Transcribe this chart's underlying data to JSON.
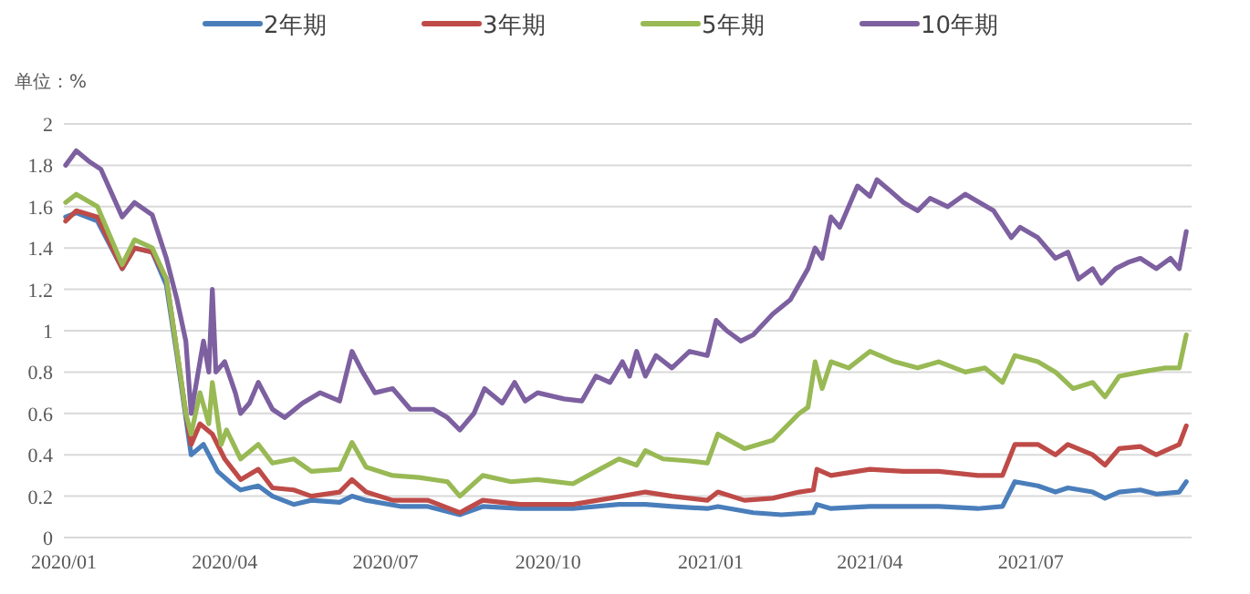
{
  "chart_data": {
    "type": "line",
    "ylabel": "单位：%",
    "legend": "top",
    "grid": "y",
    "xlim": [
      "2020-01-01",
      "2021-09-30"
    ],
    "ylim": [
      0,
      2
    ],
    "xticks": [
      {
        "value": "2020-01",
        "label": "2020/01"
      },
      {
        "value": "2020-04",
        "label": "2020/04"
      },
      {
        "value": "2020-07",
        "label": "2020/07"
      },
      {
        "value": "2020-10",
        "label": "2020/10"
      },
      {
        "value": "2021-01",
        "label": "2021/01"
      },
      {
        "value": "2021-04",
        "label": "2021/04"
      },
      {
        "value": "2021-07",
        "label": "2021/07"
      }
    ],
    "yticks": [
      0,
      0.2,
      0.4,
      0.6,
      0.8,
      1,
      1.2,
      1.4,
      1.6,
      1.8,
      2
    ],
    "series": [
      {
        "name": "2年期",
        "color": "#4a7ebb",
        "x": [
          "2020-01-02",
          "2020-01-08",
          "2020-01-20",
          "2020-02-03",
          "2020-02-10",
          "2020-02-20",
          "2020-02-28",
          "2020-03-05",
          "2020-03-10",
          "2020-03-13",
          "2020-03-20",
          "2020-03-28",
          "2020-04-05",
          "2020-04-10",
          "2020-04-20",
          "2020-04-28",
          "2020-05-10",
          "2020-05-20",
          "2020-06-05",
          "2020-06-12",
          "2020-06-20",
          "2020-07-10",
          "2020-07-25",
          "2020-08-12",
          "2020-08-25",
          "2020-09-15",
          "2020-10-15",
          "2020-11-10",
          "2020-11-25",
          "2020-12-10",
          "2020-12-30",
          "2021-01-05",
          "2021-01-25",
          "2021-02-10",
          "2021-02-28",
          "2021-03-02",
          "2021-03-10",
          "2021-04-01",
          "2021-04-20",
          "2021-05-10",
          "2021-06-01",
          "2021-06-15",
          "2021-06-22",
          "2021-07-05",
          "2021-07-15",
          "2021-07-22",
          "2021-08-05",
          "2021-08-12",
          "2021-08-20",
          "2021-09-01",
          "2021-09-10",
          "2021-09-23",
          "2021-09-27"
        ],
        "values": [
          1.55,
          1.57,
          1.53,
          1.3,
          1.4,
          1.38,
          1.22,
          0.88,
          0.58,
          0.4,
          0.45,
          0.32,
          0.26,
          0.23,
          0.25,
          0.2,
          0.16,
          0.18,
          0.17,
          0.2,
          0.18,
          0.15,
          0.15,
          0.11,
          0.15,
          0.14,
          0.14,
          0.16,
          0.16,
          0.15,
          0.14,
          0.15,
          0.12,
          0.11,
          0.12,
          0.16,
          0.14,
          0.15,
          0.15,
          0.15,
          0.14,
          0.15,
          0.27,
          0.25,
          0.22,
          0.24,
          0.22,
          0.19,
          0.22,
          0.23,
          0.21,
          0.22,
          0.27
        ]
      },
      {
        "name": "3年期",
        "color": "#be4b48",
        "x": [
          "2020-01-02",
          "2020-01-08",
          "2020-01-20",
          "2020-02-03",
          "2020-02-10",
          "2020-02-20",
          "2020-02-28",
          "2020-03-05",
          "2020-03-10",
          "2020-03-13",
          "2020-03-18",
          "2020-03-25",
          "2020-04-01",
          "2020-04-10",
          "2020-04-20",
          "2020-04-28",
          "2020-05-10",
          "2020-05-20",
          "2020-06-05",
          "2020-06-12",
          "2020-06-20",
          "2020-07-05",
          "2020-07-25",
          "2020-08-12",
          "2020-08-25",
          "2020-09-15",
          "2020-10-15",
          "2020-11-05",
          "2020-11-25",
          "2020-12-10",
          "2020-12-30",
          "2021-01-05",
          "2021-01-20",
          "2021-02-05",
          "2021-02-20",
          "2021-02-28",
          "2021-03-02",
          "2021-03-10",
          "2021-04-01",
          "2021-04-20",
          "2021-05-10",
          "2021-06-01",
          "2021-06-15",
          "2021-06-22",
          "2021-07-05",
          "2021-07-15",
          "2021-07-22",
          "2021-08-05",
          "2021-08-12",
          "2021-08-20",
          "2021-09-01",
          "2021-09-10",
          "2021-09-23",
          "2021-09-27"
        ],
        "values": [
          1.53,
          1.58,
          1.55,
          1.3,
          1.4,
          1.38,
          1.25,
          0.9,
          0.6,
          0.45,
          0.55,
          0.5,
          0.38,
          0.28,
          0.33,
          0.24,
          0.23,
          0.2,
          0.22,
          0.28,
          0.22,
          0.18,
          0.18,
          0.12,
          0.18,
          0.16,
          0.16,
          0.19,
          0.22,
          0.2,
          0.18,
          0.22,
          0.18,
          0.19,
          0.22,
          0.23,
          0.33,
          0.3,
          0.33,
          0.32,
          0.32,
          0.3,
          0.3,
          0.45,
          0.45,
          0.4,
          0.45,
          0.4,
          0.35,
          0.43,
          0.44,
          0.4,
          0.45,
          0.54
        ]
      },
      {
        "name": "5年期",
        "color": "#98b954",
        "x": [
          "2020-01-02",
          "2020-01-08",
          "2020-01-20",
          "2020-02-03",
          "2020-02-10",
          "2020-02-20",
          "2020-02-28",
          "2020-03-05",
          "2020-03-10",
          "2020-03-13",
          "2020-03-18",
          "2020-03-23",
          "2020-03-25",
          "2020-03-30",
          "2020-04-02",
          "2020-04-10",
          "2020-04-20",
          "2020-04-28",
          "2020-05-10",
          "2020-05-20",
          "2020-06-05",
          "2020-06-12",
          "2020-06-20",
          "2020-07-05",
          "2020-07-20",
          "2020-08-05",
          "2020-08-12",
          "2020-08-25",
          "2020-09-10",
          "2020-09-25",
          "2020-10-15",
          "2020-10-28",
          "2020-11-10",
          "2020-11-20",
          "2020-11-25",
          "2020-12-05",
          "2020-12-20",
          "2020-12-30",
          "2021-01-05",
          "2021-01-20",
          "2021-02-05",
          "2021-02-20",
          "2021-02-25",
          "2021-03-01",
          "2021-03-05",
          "2021-03-10",
          "2021-03-20",
          "2021-04-01",
          "2021-04-15",
          "2021-04-28",
          "2021-05-10",
          "2021-05-25",
          "2021-06-05",
          "2021-06-15",
          "2021-06-22",
          "2021-07-05",
          "2021-07-15",
          "2021-07-25",
          "2021-08-05",
          "2021-08-12",
          "2021-08-20",
          "2021-09-01",
          "2021-09-15",
          "2021-09-23",
          "2021-09-27"
        ],
        "values": [
          1.62,
          1.66,
          1.6,
          1.32,
          1.44,
          1.4,
          1.25,
          0.9,
          0.6,
          0.5,
          0.7,
          0.55,
          0.75,
          0.45,
          0.52,
          0.38,
          0.45,
          0.36,
          0.38,
          0.32,
          0.33,
          0.46,
          0.34,
          0.3,
          0.29,
          0.27,
          0.2,
          0.3,
          0.27,
          0.28,
          0.26,
          0.32,
          0.38,
          0.35,
          0.42,
          0.38,
          0.37,
          0.36,
          0.5,
          0.43,
          0.47,
          0.6,
          0.63,
          0.85,
          0.72,
          0.85,
          0.82,
          0.9,
          0.85,
          0.82,
          0.85,
          0.8,
          0.82,
          0.75,
          0.88,
          0.85,
          0.8,
          0.72,
          0.75,
          0.68,
          0.78,
          0.8,
          0.82,
          0.82,
          0.98
        ]
      },
      {
        "name": "10年期",
        "color": "#7d60a0",
        "x": [
          "2020-01-02",
          "2020-01-08",
          "2020-01-15",
          "2020-01-22",
          "2020-02-03",
          "2020-02-10",
          "2020-02-20",
          "2020-02-28",
          "2020-03-05",
          "2020-03-10",
          "2020-03-13",
          "2020-03-18",
          "2020-03-20",
          "2020-03-23",
          "2020-03-25",
          "2020-03-27",
          "2020-04-01",
          "2020-04-07",
          "2020-04-10",
          "2020-04-15",
          "2020-04-20",
          "2020-04-28",
          "2020-05-05",
          "2020-05-15",
          "2020-05-25",
          "2020-06-05",
          "2020-06-12",
          "2020-06-18",
          "2020-06-25",
          "2020-07-05",
          "2020-07-15",
          "2020-07-28",
          "2020-08-05",
          "2020-08-12",
          "2020-08-20",
          "2020-08-26",
          "2020-09-05",
          "2020-09-12",
          "2020-09-18",
          "2020-09-25",
          "2020-10-10",
          "2020-10-20",
          "2020-10-28",
          "2020-11-05",
          "2020-11-12",
          "2020-11-16",
          "2020-11-20",
          "2020-11-25",
          "2020-12-01",
          "2020-12-10",
          "2020-12-20",
          "2020-12-30",
          "2021-01-04",
          "2021-01-10",
          "2021-01-18",
          "2021-01-25",
          "2021-02-05",
          "2021-02-15",
          "2021-02-25",
          "2021-03-01",
          "2021-03-05",
          "2021-03-10",
          "2021-03-15",
          "2021-03-20",
          "2021-03-25",
          "2021-04-01",
          "2021-04-05",
          "2021-04-12",
          "2021-04-20",
          "2021-04-28",
          "2021-05-05",
          "2021-05-15",
          "2021-05-25",
          "2021-06-02",
          "2021-06-10",
          "2021-06-20",
          "2021-06-25",
          "2021-07-05",
          "2021-07-15",
          "2021-07-22",
          "2021-07-28",
          "2021-08-05",
          "2021-08-10",
          "2021-08-18",
          "2021-08-25",
          "2021-09-01",
          "2021-09-10",
          "2021-09-18",
          "2021-09-23",
          "2021-09-27"
        ],
        "values": [
          1.8,
          1.87,
          1.82,
          1.78,
          1.55,
          1.62,
          1.56,
          1.35,
          1.15,
          0.95,
          0.6,
          0.85,
          0.95,
          0.8,
          1.2,
          0.8,
          0.85,
          0.7,
          0.6,
          0.65,
          0.75,
          0.62,
          0.58,
          0.65,
          0.7,
          0.66,
          0.9,
          0.8,
          0.7,
          0.72,
          0.62,
          0.62,
          0.58,
          0.52,
          0.6,
          0.72,
          0.65,
          0.75,
          0.66,
          0.7,
          0.67,
          0.66,
          0.78,
          0.75,
          0.85,
          0.78,
          0.9,
          0.78,
          0.88,
          0.82,
          0.9,
          0.88,
          1.05,
          1.0,
          0.95,
          0.98,
          1.08,
          1.15,
          1.3,
          1.4,
          1.35,
          1.55,
          1.5,
          1.6,
          1.7,
          1.65,
          1.73,
          1.68,
          1.62,
          1.58,
          1.64,
          1.6,
          1.66,
          1.62,
          1.58,
          1.45,
          1.5,
          1.45,
          1.35,
          1.38,
          1.25,
          1.3,
          1.23,
          1.3,
          1.33,
          1.35,
          1.3,
          1.35,
          1.3,
          1.48
        ]
      }
    ]
  }
}
